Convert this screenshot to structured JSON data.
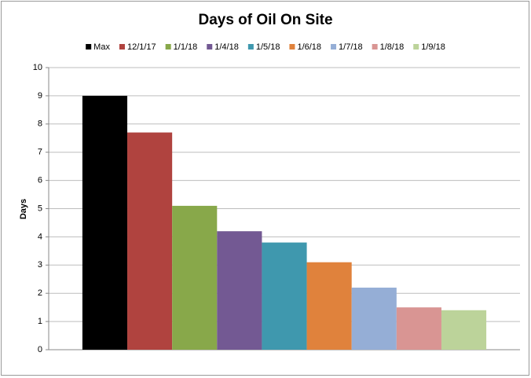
{
  "chart_data": {
    "type": "bar",
    "title": "Days of Oil On Site",
    "y_label": "Days",
    "categories": [
      null
    ],
    "series": [
      {
        "name": "Max",
        "color": "#000000",
        "values": [
          9.0
        ]
      },
      {
        "name": "12/1/17",
        "color": "#b0433f",
        "values": [
          7.7
        ]
      },
      {
        "name": "1/1/18",
        "color": "#88a84a",
        "values": [
          5.1
        ]
      },
      {
        "name": "1/4/18",
        "color": "#735993",
        "values": [
          4.2
        ]
      },
      {
        "name": "1/5/18",
        "color": "#3f98ae",
        "values": [
          3.8
        ]
      },
      {
        "name": "1/6/18",
        "color": "#e0823c",
        "values": [
          3.1
        ]
      },
      {
        "name": "1/7/18",
        "color": "#95aed6",
        "values": [
          2.2
        ]
      },
      {
        "name": "1/8/18",
        "color": "#d99593",
        "values": [
          1.5
        ]
      },
      {
        "name": "1/9/18",
        "color": "#bcd39a",
        "values": [
          1.4
        ]
      }
    ],
    "ylim": [
      0,
      10
    ],
    "yticks": [
      0,
      1,
      2,
      3,
      4,
      5,
      6,
      7,
      8,
      9,
      10
    ],
    "grid": true,
    "legend": "top"
  }
}
